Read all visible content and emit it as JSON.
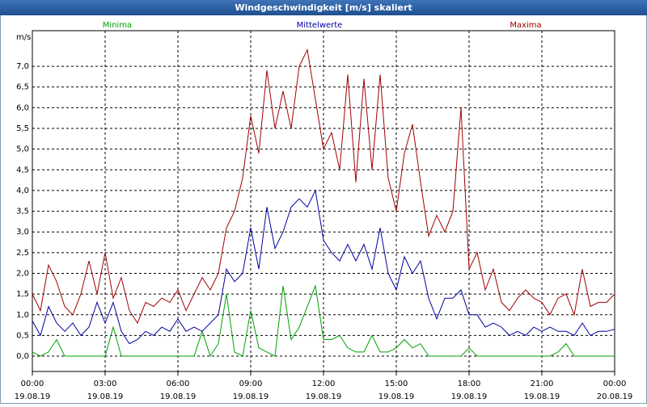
{
  "chart_data": {
    "type": "line",
    "title": "Windgeschwindigkeit [m/s] skaliert",
    "y_label": "m/s",
    "x": [
      0,
      20,
      40,
      60,
      80,
      100,
      120,
      140,
      160,
      180,
      200,
      220,
      240,
      260,
      280,
      300,
      320,
      340,
      360,
      380,
      400,
      420,
      440,
      460,
      480,
      500,
      520,
      540,
      560,
      580,
      600,
      620,
      640,
      660,
      680,
      700,
      720,
      740,
      760,
      780,
      800,
      820,
      840,
      860,
      880,
      900,
      920,
      940,
      960,
      980,
      1000,
      1020,
      1040,
      1060,
      1080,
      1100,
      1120,
      1140,
      1160,
      1180,
      1200,
      1220,
      1240,
      1260,
      1280,
      1300,
      1320,
      1340,
      1360,
      1380,
      1400,
      1420,
      1440
    ],
    "xlim": [
      0,
      1440
    ],
    "xticks": [
      {
        "value": 0,
        "label": "00:00",
        "date": "19.08.19"
      },
      {
        "value": 180,
        "label": "03:00",
        "date": "19.08.19"
      },
      {
        "value": 360,
        "label": "06:00",
        "date": "19.08.19"
      },
      {
        "value": 540,
        "label": "09:00",
        "date": "19.08.19"
      },
      {
        "value": 720,
        "label": "12:00",
        "date": "19.08.19"
      },
      {
        "value": 900,
        "label": "15:00",
        "date": "19.08.19"
      },
      {
        "value": 1080,
        "label": "18:00",
        "date": "19.08.19"
      },
      {
        "value": 1260,
        "label": "21:00",
        "date": "19.08.19"
      },
      {
        "value": 1440,
        "label": "00:00",
        "date": "20.08.19"
      }
    ],
    "ylim": [
      -0.37,
      7.86
    ],
    "yticks": [
      {
        "value": 0,
        "label": "0,0"
      },
      {
        "value": 0.5,
        "label": "0,5"
      },
      {
        "value": 1,
        "label": "1,0"
      },
      {
        "value": 1.5,
        "label": "1,5"
      },
      {
        "value": 2,
        "label": "2,0"
      },
      {
        "value": 2.5,
        "label": "2,5"
      },
      {
        "value": 3,
        "label": "3,0"
      },
      {
        "value": 3.5,
        "label": "3,5"
      },
      {
        "value": 4,
        "label": "4,0"
      },
      {
        "value": 4.5,
        "label": "4,5"
      },
      {
        "value": 5,
        "label": "5,0"
      },
      {
        "value": 5.5,
        "label": "5,5"
      },
      {
        "value": 6,
        "label": "6,0"
      },
      {
        "value": 6.5,
        "label": "6,5"
      },
      {
        "value": 7,
        "label": "7,0"
      }
    ],
    "grid": true,
    "series": [
      {
        "name": "Minima",
        "color": "#00a000",
        "values": [
          0.1,
          0,
          0.1,
          0.4,
          0,
          0,
          0,
          0,
          0,
          0,
          0.7,
          0,
          0,
          0,
          0,
          0,
          0,
          0,
          0,
          0,
          0,
          0.6,
          0,
          0.3,
          1.5,
          0.1,
          0,
          1.1,
          0.2,
          0.1,
          0,
          1.7,
          0.4,
          0.7,
          1.2,
          1.7,
          0.4,
          0.4,
          0.5,
          0.2,
          0.1,
          0.1,
          0.5,
          0.1,
          0.1,
          0.2,
          0.4,
          0.2,
          0.3,
          0,
          0,
          0,
          0,
          0,
          0.2,
          0,
          0,
          0,
          0,
          0,
          0,
          0,
          0,
          0,
          0,
          0.1,
          0.3,
          0,
          0,
          0,
          0,
          0,
          0
        ]
      },
      {
        "name": "Mittelwerte",
        "color": "#0000a0",
        "values": [
          0.85,
          0.5,
          1.2,
          0.8,
          0.6,
          0.8,
          0.5,
          0.7,
          1.3,
          0.8,
          1.3,
          0.6,
          0.3,
          0.4,
          0.6,
          0.5,
          0.7,
          0.6,
          0.9,
          0.6,
          0.7,
          0.6,
          0.8,
          1.0,
          2.1,
          1.8,
          2.0,
          3.1,
          2.1,
          3.6,
          2.6,
          3.0,
          3.6,
          3.8,
          3.6,
          4.0,
          2.8,
          2.5,
          2.3,
          2.7,
          2.3,
          2.7,
          2.1,
          3.1,
          2.0,
          1.6,
          2.4,
          2.0,
          2.3,
          1.4,
          0.9,
          1.4,
          1.4,
          1.6,
          1.0,
          1.0,
          0.7,
          0.8,
          0.7,
          0.5,
          0.6,
          0.5,
          0.7,
          0.6,
          0.7,
          0.6,
          0.6,
          0.5,
          0.8,
          0.5,
          0.6,
          0.6,
          0.65
        ]
      },
      {
        "name": "Maxima",
        "color": "#a00000",
        "values": [
          1.5,
          1.1,
          2.2,
          1.8,
          1.2,
          1.0,
          1.5,
          2.3,
          1.5,
          2.5,
          1.4,
          1.9,
          1.1,
          0.8,
          1.3,
          1.2,
          1.4,
          1.3,
          1.6,
          1.1,
          1.5,
          1.9,
          1.6,
          2.0,
          3.1,
          3.5,
          4.3,
          5.8,
          4.9,
          6.9,
          5.5,
          6.4,
          5.5,
          7.0,
          7.4,
          6.2,
          5.0,
          5.4,
          4.5,
          6.8,
          4.2,
          6.7,
          4.5,
          6.8,
          4.3,
          3.5,
          4.9,
          5.6,
          4.2,
          2.9,
          3.4,
          3.0,
          3.5,
          6.0,
          2.1,
          2.5,
          1.6,
          2.1,
          1.3,
          1.1,
          1.4,
          1.6,
          1.4,
          1.3,
          1.0,
          1.4,
          1.5,
          1.0,
          2.1,
          1.2,
          1.3,
          1.3,
          1.5
        ]
      }
    ]
  }
}
